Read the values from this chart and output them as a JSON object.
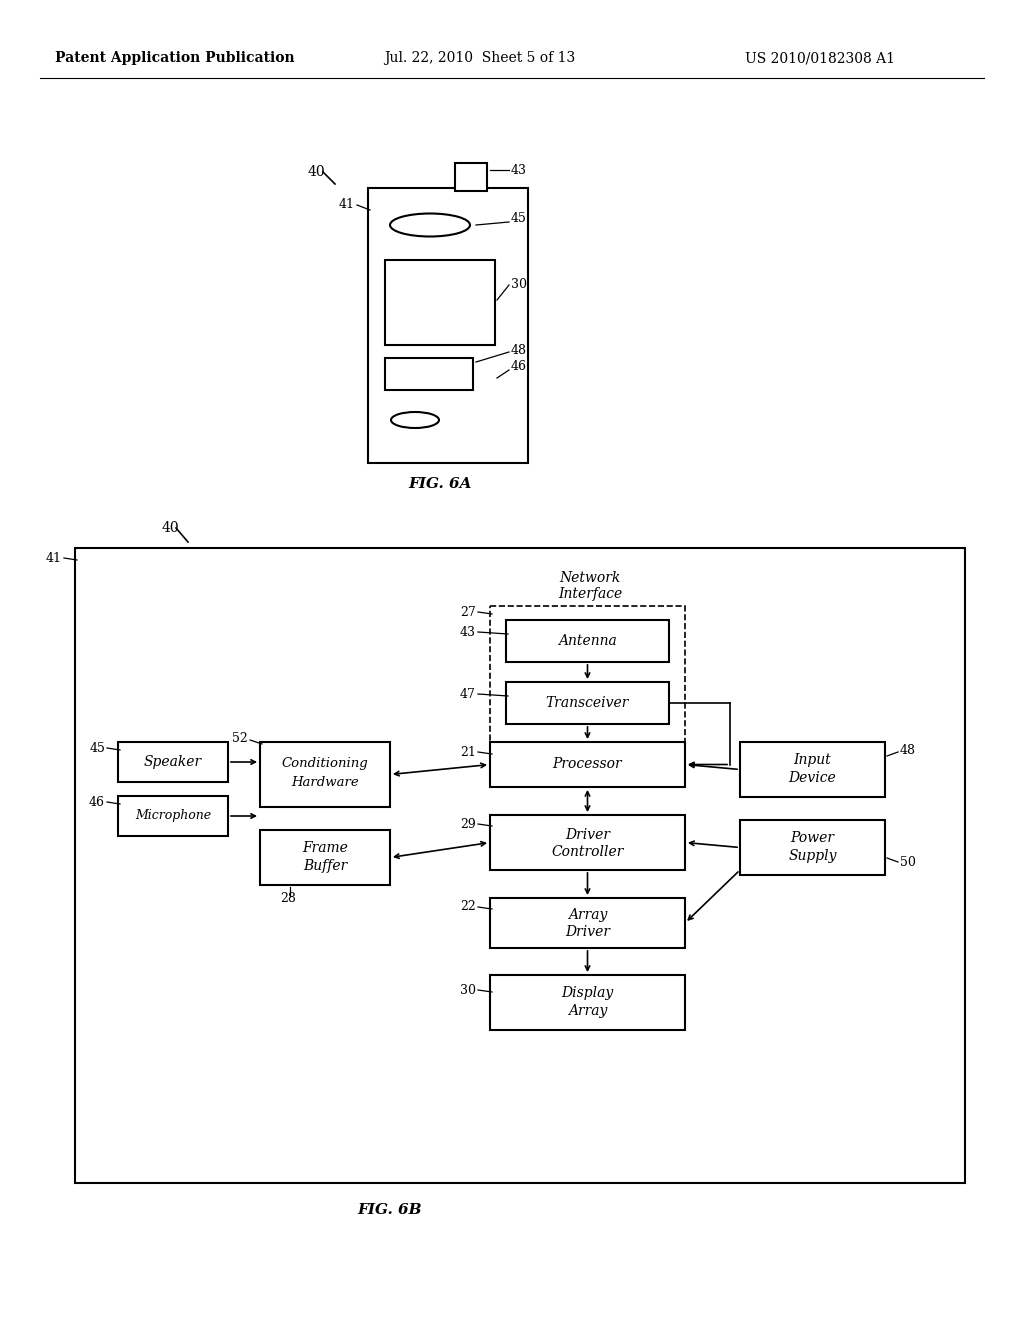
{
  "bg_color": "#ffffff",
  "header_left": "Patent Application Publication",
  "header_mid": "Jul. 22, 2010  Sheet 5 of 13",
  "header_right": "US 2010/0182308 A1",
  "fig6a_label": "FIG. 6A",
  "fig6b_label": "FIG. 6B"
}
